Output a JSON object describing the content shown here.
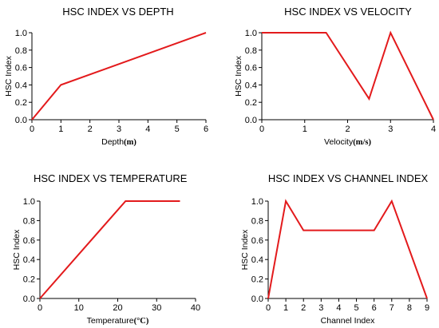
{
  "chart_data": [
    {
      "type": "line",
      "title": "HSC INDEX VS DEPTH",
      "xlabel_main": "Depth",
      "xlabel_unit": "(m)",
      "ylabel": "HSC Index",
      "xlim": [
        0,
        6
      ],
      "ylim": [
        0,
        1
      ],
      "xticks": [
        "0",
        "1",
        "2",
        "3",
        "4",
        "5",
        "6"
      ],
      "yticks": [
        "0.0",
        "0.2",
        "0.4",
        "0.6",
        "0.8",
        "1.0"
      ],
      "series_color": "#e31a1c",
      "x": [
        0,
        1,
        6
      ],
      "y": [
        0,
        0.4,
        1.0
      ]
    },
    {
      "type": "line",
      "title": "HSC INDEX VS VELOCITY",
      "xlabel_main": "Velocity",
      "xlabel_unit": "(m/s)",
      "ylabel": "HSC Index",
      "xlim": [
        0,
        4
      ],
      "ylim": [
        0,
        1
      ],
      "xticks": [
        "0",
        "1",
        "2",
        "3",
        "4"
      ],
      "yticks": [
        "0.0",
        "0.2",
        "0.4",
        "0.6",
        "0.8",
        "1.0"
      ],
      "series_color": "#e31a1c",
      "x": [
        0,
        1.5,
        2.5,
        3,
        4
      ],
      "y": [
        1.0,
        1.0,
        0.24,
        1.0,
        0
      ]
    },
    {
      "type": "line",
      "title": "HSC INDEX VS TEMPERATURE",
      "xlabel_main": "Temperature",
      "xlabel_unit": "(°C)",
      "ylabel": "HSC Index",
      "xlim": [
        0,
        40
      ],
      "ylim": [
        0,
        1
      ],
      "xticks": [
        "0",
        "10",
        "20",
        "30",
        "40"
      ],
      "yticks": [
        "0.0",
        "0.2",
        "0.4",
        "0.6",
        "0.8",
        "1.0"
      ],
      "series_color": "#e31a1c",
      "x": [
        0,
        22,
        36
      ],
      "y": [
        0,
        1.0,
        1.0
      ]
    },
    {
      "type": "line",
      "title": "HSC INDEX VS CHANNEL INDEX",
      "xlabel_main": "Channel Index",
      "xlabel_unit": "",
      "ylabel": "HSC Index",
      "xlim": [
        0,
        9
      ],
      "ylim": [
        0,
        1
      ],
      "xticks": [
        "0",
        "1",
        "2",
        "3",
        "4",
        "5",
        "6",
        "7",
        "8",
        "9"
      ],
      "yticks": [
        "0.0",
        "0.2",
        "0.4",
        "0.6",
        "0.8",
        "1.0"
      ],
      "series_color": "#e31a1c",
      "x": [
        0,
        1,
        2,
        6,
        7,
        9
      ],
      "y": [
        0,
        1.0,
        0.7,
        0.7,
        1.0,
        0
      ]
    }
  ]
}
